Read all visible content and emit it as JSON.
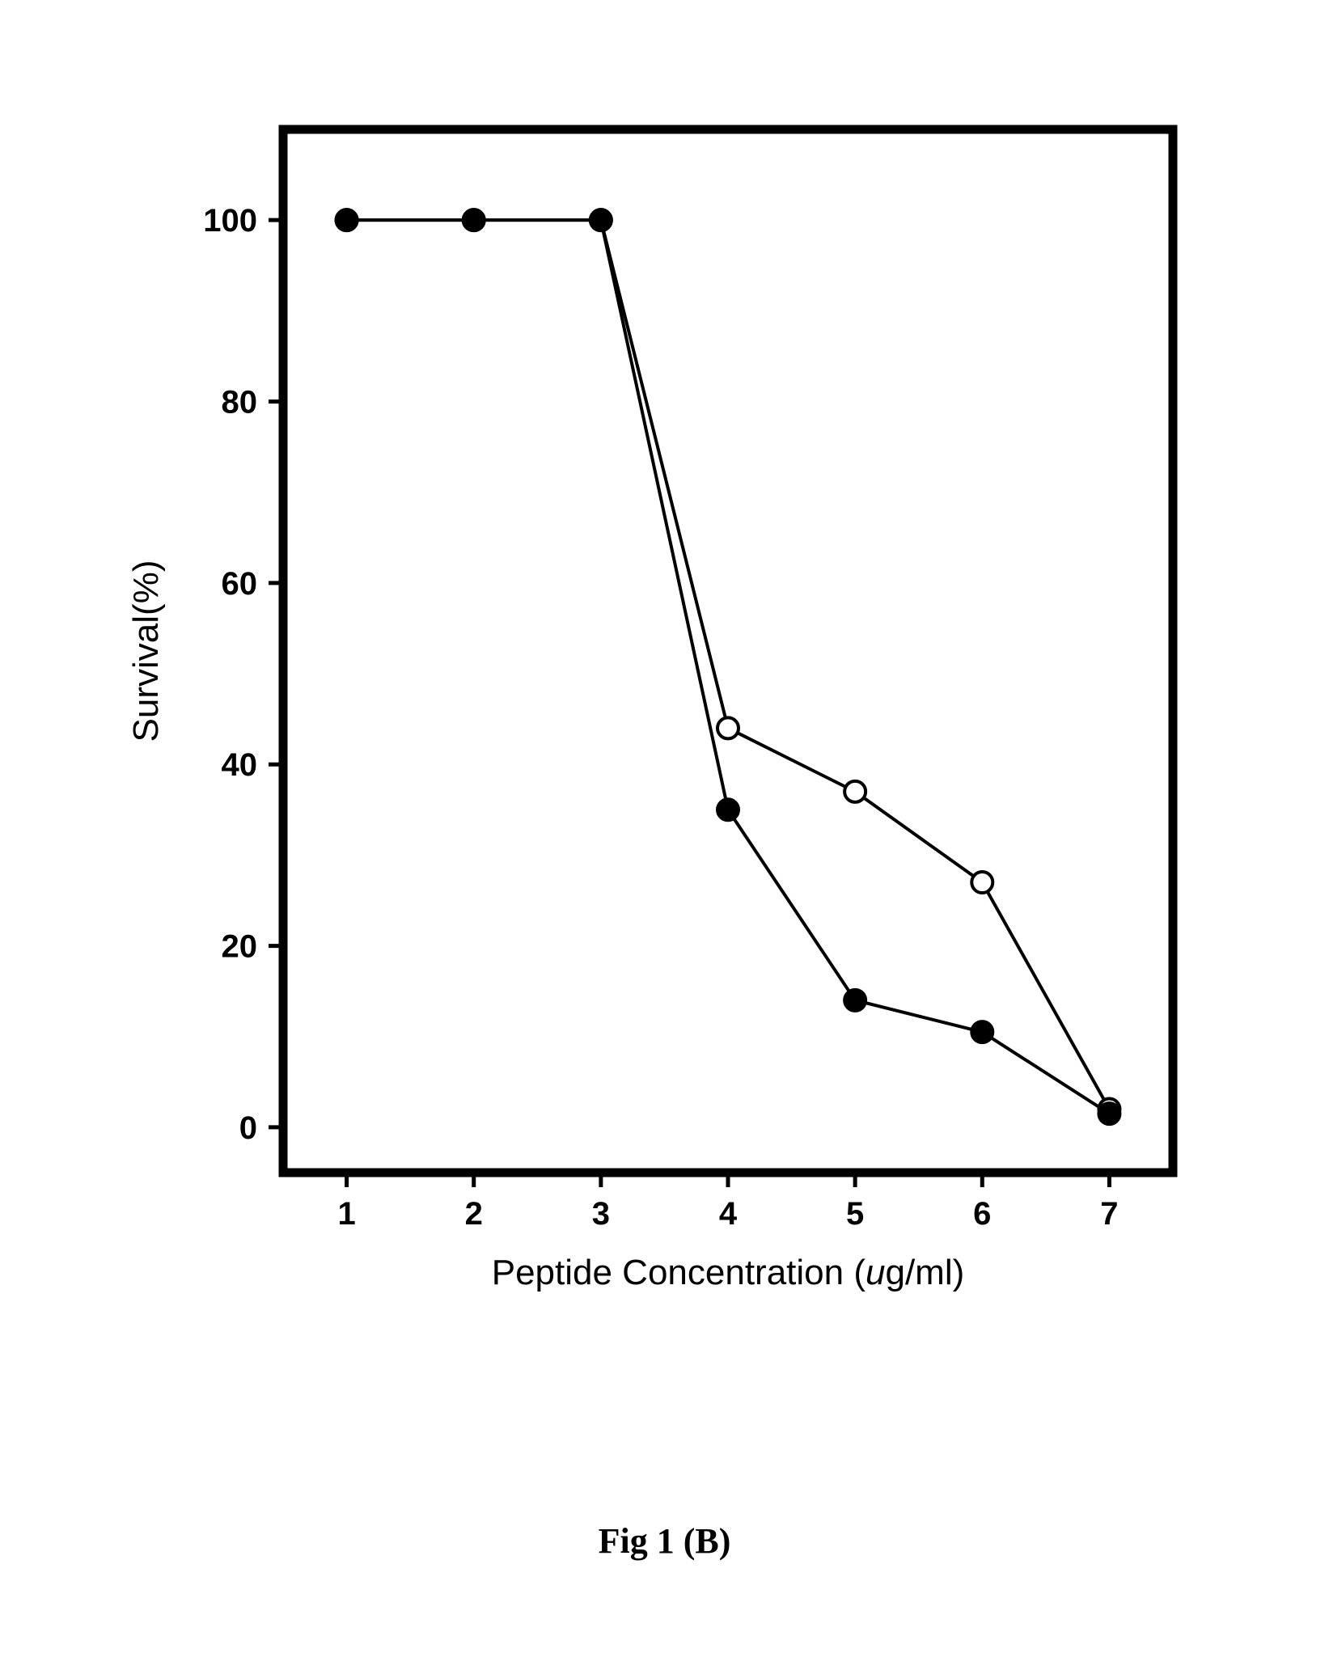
{
  "chart": {
    "type": "line",
    "xlabel": "Peptide Concentration (",
    "xlabel_italic": "u",
    "xlabel_tail": "g/ml)",
    "ylabel": "Survival(%)",
    "label_fontsize": 44,
    "tick_fontsize": 40,
    "axis_color": "#000000",
    "background_color": "#ffffff",
    "frame_linewidth": 11,
    "axis_linewidth": 3,
    "tick_length": 18,
    "xlim": [
      0.5,
      7.5
    ],
    "ylim": [
      -5,
      110
    ],
    "xticks": [
      1,
      2,
      3,
      4,
      5,
      6,
      7
    ],
    "yticks": [
      0,
      20,
      40,
      60,
      80,
      100
    ],
    "marker_radius": 13,
    "marker_stroke": 4,
    "line_width": 4,
    "series": [
      {
        "name": "open",
        "marker_fill": "#ffffff",
        "marker_stroke_color": "#000000",
        "line_color": "#000000",
        "x": [
          1,
          2,
          3,
          4,
          5,
          6,
          7
        ],
        "y": [
          100,
          100,
          100,
          44,
          37,
          27,
          2
        ]
      },
      {
        "name": "filled",
        "marker_fill": "#000000",
        "marker_stroke_color": "#000000",
        "line_color": "#000000",
        "x": [
          1,
          2,
          3,
          4,
          5,
          6,
          7
        ],
        "y": [
          100,
          100,
          100,
          35,
          14,
          10.5,
          1.5
        ]
      }
    ]
  },
  "caption": "Fig 1 (B)"
}
